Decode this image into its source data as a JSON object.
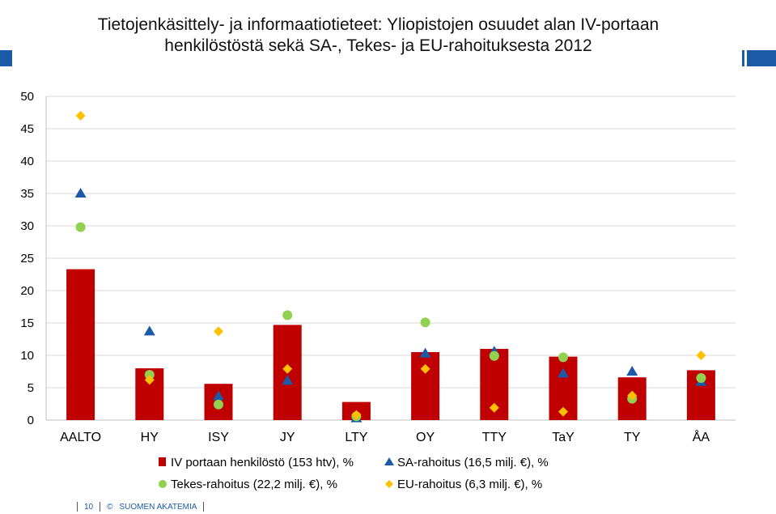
{
  "title": "Tietojenkäsittely- ja informaatiotieteet: Yliopistojen osuudet alan IV-portaan henkilöstöstä sekä SA-, Tekes- ja EU-rahoituksesta 2012",
  "colors": {
    "bar": "#c00000",
    "sa": "#1a5aa6",
    "tekes": "#92d050",
    "eu": "#ffc000",
    "grid": "#d9d9d9"
  },
  "footer": {
    "page": "10",
    "copyright": "©",
    "org": "SUOMEN AKATEMIA"
  },
  "chart_data": {
    "type": "bar",
    "title": "Tietojenkäsittely- ja informaatiotieteet: Yliopistojen osuudet alan IV-portaan henkilöstöstä sekä SA-, Tekes- ja EU-rahoituksesta 2012",
    "categories": [
      "AALTO",
      "HY",
      "ISY",
      "JY",
      "LTY",
      "OY",
      "TTY",
      "TaY",
      "TY",
      "ÅA"
    ],
    "ylim": [
      0,
      50
    ],
    "yticks": [
      "0",
      "5",
      "10",
      "15",
      "20",
      "25",
      "30",
      "35",
      "40",
      "45",
      "50"
    ],
    "grid": true,
    "legend_position": "bottom",
    "series": [
      {
        "name": "IV portaan henkilöstö (153 htv), %",
        "kind": "bar",
        "marker": "bar",
        "color": "#c00000",
        "values": [
          23.3,
          8.0,
          5.6,
          14.7,
          2.8,
          10.5,
          11.0,
          9.8,
          6.6,
          7.7
        ]
      },
      {
        "name": "SA-rahoitus (16,5 milj. €), %",
        "kind": "marker",
        "marker": "triangle",
        "color": "#1a5aa6",
        "values": [
          35.0,
          13.7,
          3.7,
          6.1,
          0.3,
          10.3,
          10.6,
          7.2,
          7.5,
          5.9
        ]
      },
      {
        "name": "Tekes-rahoitus (22,2 milj. €), %",
        "kind": "marker",
        "marker": "circle",
        "color": "#92d050",
        "values": [
          29.8,
          7.0,
          2.4,
          16.2,
          0.6,
          15.1,
          9.9,
          9.7,
          3.3,
          6.5
        ]
      },
      {
        "name": "EU-rahoitus (6,3 milj. €), %",
        "kind": "marker",
        "marker": "diamond",
        "color": "#ffc000",
        "values": [
          47.0,
          6.2,
          13.7,
          7.9,
          0.8,
          7.9,
          1.9,
          1.3,
          3.8,
          10.0
        ]
      }
    ]
  }
}
